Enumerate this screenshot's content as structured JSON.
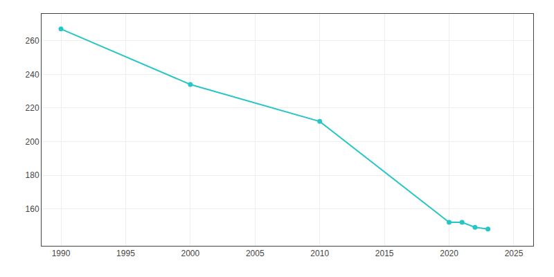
{
  "chart_data": {
    "type": "line",
    "x": [
      1990,
      2000,
      2010,
      2020,
      2021,
      2022,
      2023
    ],
    "values": [
      267,
      234,
      212,
      152,
      152,
      149,
      148
    ],
    "color": "#26c6c6",
    "marker": "circle",
    "line_style": "solid",
    "xlim": [
      1988.5,
      2026.5
    ],
    "ylim": [
      138,
      276
    ],
    "xticks": [
      1990,
      1995,
      2000,
      2005,
      2010,
      2015,
      2020,
      2025
    ],
    "yticks": [
      160,
      180,
      200,
      220,
      240,
      260
    ],
    "grid": true
  }
}
